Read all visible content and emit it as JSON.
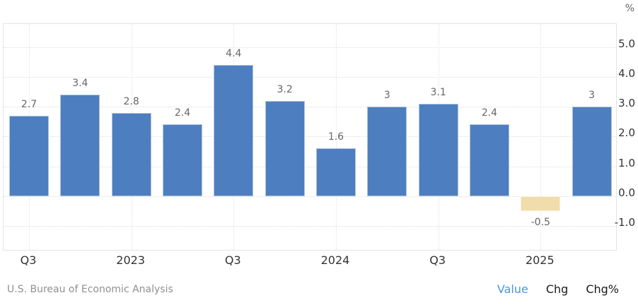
{
  "chart_data": {
    "type": "bar",
    "values": [
      2.7,
      3.4,
      2.8,
      2.4,
      4.4,
      3.2,
      1.6,
      3,
      3.1,
      2.4,
      -0.5,
      3
    ],
    "bar_labels": [
      "2.7",
      "3.4",
      "2.8",
      "2.4",
      "4.4",
      "3.2",
      "1.6",
      "3",
      "3.1",
      "2.4",
      "-0.5",
      "3"
    ],
    "x_tick_labels": [
      "Q3",
      "2023",
      "Q3",
      "2024",
      "Q3",
      "2025"
    ],
    "x_tick_bar_indices": [
      0,
      2,
      4,
      6,
      8,
      10
    ],
    "y_tick_labels": [
      "5.0",
      "4.0",
      "3.0",
      "2.0",
      "1.0",
      "0.0",
      "-1.0"
    ],
    "y_tick_values": [
      5,
      4,
      3,
      2,
      1,
      0,
      -1
    ],
    "y_unit": "%",
    "ylim": [
      -1.85,
      5.77
    ],
    "grid": true,
    "legend_position": "none",
    "colors": {
      "positive_bar": "#4d7ebf",
      "negative_bar": "#f1dcab",
      "grid": "#dedede",
      "plot_border": "#e4e4e4",
      "bar_label": "#666666",
      "axis_label": "#333333"
    }
  },
  "footer": {
    "source": "U.S. Bureau of Economic Analysis",
    "links": [
      {
        "label": "Value",
        "active": true
      },
      {
        "label": "Chg",
        "active": false
      },
      {
        "label": "Chg%",
        "active": false
      }
    ],
    "active_link_color": "#4a96e0",
    "inactive_link_color": "#1a1a1a"
  }
}
